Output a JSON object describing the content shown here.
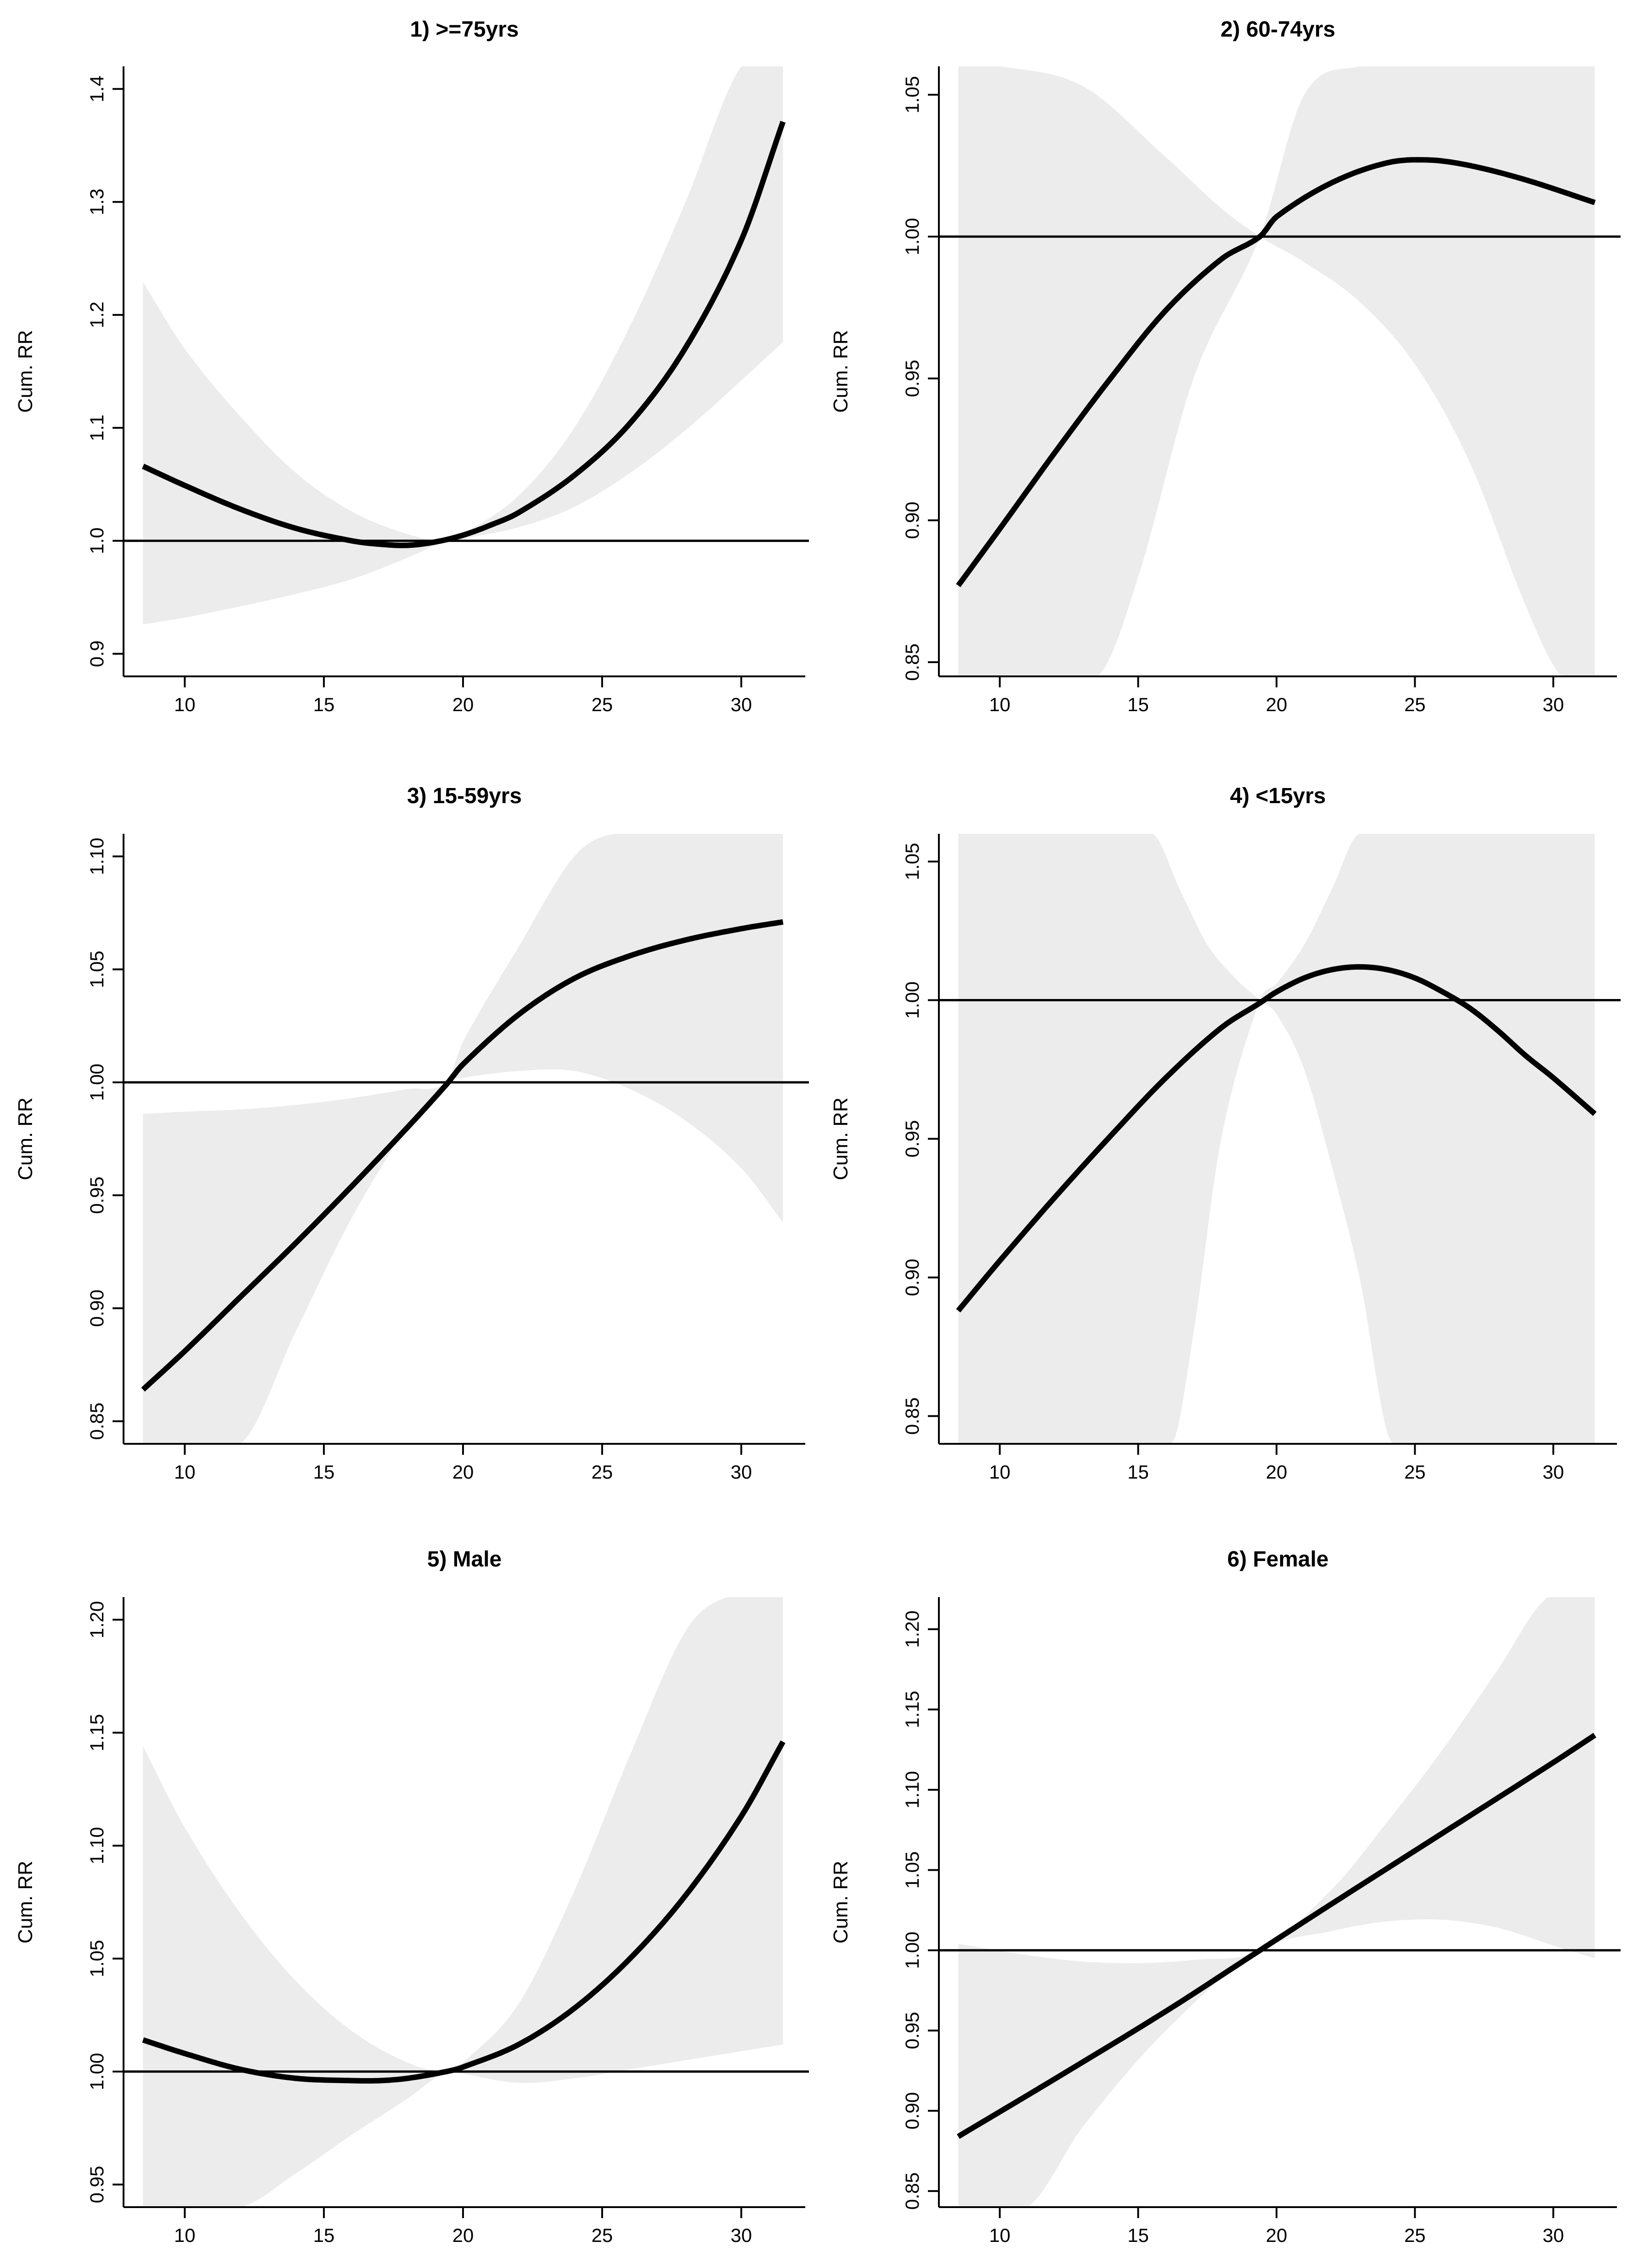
{
  "figure": {
    "band_color": "#ececec",
    "line_color": "#000000"
  },
  "chart_data": [
    {
      "type": "line",
      "title": "1) >=75yrs",
      "xlabel": "",
      "ylabel": "Cum. RR",
      "xlim": [
        7.8,
        32.3
      ],
      "ylim": [
        0.88,
        1.42
      ],
      "xticks": [
        10,
        15,
        20,
        25,
        30
      ],
      "xtick_labels": [
        "10",
        "15",
        "20",
        "25",
        "30"
      ],
      "yticks": [
        0.9,
        1.0,
        1.1,
        1.2,
        1.3,
        1.4
      ],
      "ytick_labels": [
        "0.9",
        "1.0",
        "1.1",
        "1.2",
        "1.3",
        "1.4"
      ],
      "reference_line": 1.0,
      "series": [
        {
          "name": "Cum. RR",
          "x": [
            8.5,
            10,
            12,
            14,
            16,
            17,
            18,
            19,
            20,
            21,
            22,
            24,
            26,
            28,
            30,
            31.5
          ],
          "values": [
            1.066,
            1.049,
            1.028,
            1.011,
            1.0,
            0.997,
            0.996,
            0.999,
            1.005,
            1.014,
            1.025,
            1.058,
            1.104,
            1.171,
            1.266,
            1.371
          ]
        },
        {
          "name": "95% CI lower",
          "x": [
            8.5,
            10,
            12,
            14,
            16,
            18,
            19.4,
            20,
            22,
            24,
            26,
            28,
            30,
            31.5
          ],
          "values": [
            0.926,
            0.932,
            0.942,
            0.953,
            0.966,
            0.985,
            1.0,
            1.002,
            1.012,
            1.03,
            1.06,
            1.098,
            1.142,
            1.176
          ]
        },
        {
          "name": "95% CI upper",
          "x": [
            8.5,
            10,
            12,
            14,
            16,
            18,
            19.4,
            20,
            22,
            24,
            26,
            28,
            30,
            31.5
          ],
          "values": [
            1.229,
            1.17,
            1.11,
            1.06,
            1.026,
            1.006,
            1.0,
            1.006,
            1.04,
            1.1,
            1.19,
            1.3,
            1.42,
            1.42
          ]
        }
      ]
    },
    {
      "type": "line",
      "title": "2) 60-74yrs",
      "xlabel": "",
      "ylabel": "Cum. RR",
      "xlim": [
        7.8,
        32.3
      ],
      "ylim": [
        0.845,
        1.06
      ],
      "xticks": [
        10,
        15,
        20,
        25,
        30
      ],
      "xtick_labels": [
        "10",
        "15",
        "20",
        "25",
        "30"
      ],
      "yticks": [
        0.85,
        0.9,
        0.95,
        1.0,
        1.05
      ],
      "ytick_labels": [
        "0.85",
        "0.90",
        "0.95",
        "1.00",
        "1.05"
      ],
      "reference_line": 1.0,
      "series": [
        {
          "name": "Cum. RR",
          "x": [
            8.5,
            10,
            12,
            14,
            16,
            18,
            19.4,
            20,
            22,
            24,
            25.5,
            27,
            29,
            31.5
          ],
          "values": [
            0.877,
            0.897,
            0.924,
            0.95,
            0.974,
            0.992,
            1.0,
            1.007,
            1.019,
            1.026,
            1.027,
            1.025,
            1.02,
            1.012
          ]
        },
        {
          "name": "95% CI lower",
          "x": [
            8.5,
            13.5,
            15,
            17,
            19.4,
            21,
            23,
            25,
            27,
            29,
            30.3,
            31.5
          ],
          "values": [
            0.845,
            0.845,
            0.88,
            0.95,
            1.0,
            1.05,
            1.06,
            1.06,
            1.06,
            1.06,
            1.06,
            1.06
          ]
        },
        {
          "name": "95% CI upper",
          "x": [
            8.5,
            10,
            13,
            16,
            18,
            19.4,
            21,
            23,
            25,
            27,
            29,
            30.3,
            31.5
          ],
          "values": [
            1.06,
            1.06,
            1.053,
            1.028,
            1.01,
            1.0,
            0.991,
            0.977,
            0.955,
            0.92,
            0.87,
            0.845,
            0.845
          ]
        }
      ]
    },
    {
      "type": "line",
      "title": "3) 15-59yrs",
      "xlabel": "",
      "ylabel": "Cum. RR",
      "xlim": [
        7.8,
        32.3
      ],
      "ylim": [
        0.84,
        1.11
      ],
      "xticks": [
        10,
        15,
        20,
        25,
        30
      ],
      "xtick_labels": [
        "10",
        "15",
        "20",
        "25",
        "30"
      ],
      "yticks": [
        0.85,
        0.9,
        0.95,
        1.0,
        1.05,
        1.1
      ],
      "ytick_labels": [
        "0.85",
        "0.90",
        "0.95",
        "1.00",
        "1.05",
        "1.10"
      ],
      "reference_line": 1.0,
      "series": [
        {
          "name": "Cum. RR",
          "x": [
            8.5,
            10,
            12,
            14,
            16,
            18,
            19.4,
            20,
            22,
            24,
            26,
            28,
            30,
            31.5
          ],
          "values": [
            0.864,
            0.881,
            0.905,
            0.929,
            0.954,
            0.98,
            0.999,
            1.008,
            1.03,
            1.046,
            1.056,
            1.063,
            1.068,
            1.071
          ]
        },
        {
          "name": "95% CI lower",
          "x": [
            8.5,
            12,
            14,
            16,
            18,
            19.4,
            20,
            22,
            24,
            26,
            28,
            30,
            31.5
          ],
          "values": [
            0.84,
            0.84,
            0.89,
            0.94,
            0.98,
            1.0,
            1.002,
            1.005,
            1.005,
            0.997,
            0.983,
            0.962,
            0.938
          ]
        },
        {
          "name": "95% CI upper",
          "x": [
            8.5,
            10,
            12,
            14,
            16,
            18,
            19.4,
            20,
            22,
            24,
            25.5,
            31.5
          ],
          "values": [
            0.986,
            0.987,
            0.988,
            0.99,
            0.993,
            0.997,
            1.0,
            1.018,
            1.06,
            1.1,
            1.11,
            1.11
          ]
        }
      ]
    },
    {
      "type": "line",
      "title": "4) <15yrs",
      "xlabel": "",
      "ylabel": "Cum. RR",
      "xlim": [
        7.8,
        32.3
      ],
      "ylim": [
        0.84,
        1.06
      ],
      "xticks": [
        10,
        15,
        20,
        25,
        30
      ],
      "xtick_labels": [
        "10",
        "15",
        "20",
        "25",
        "30"
      ],
      "yticks": [
        0.85,
        0.9,
        0.95,
        1.0,
        1.05
      ],
      "ytick_labels": [
        "0.85",
        "0.90",
        "0.95",
        "1.00",
        "1.05"
      ],
      "reference_line": 1.0,
      "series": [
        {
          "name": "Cum. RR",
          "x": [
            8.5,
            10,
            12,
            14,
            16,
            18,
            19.4,
            20,
            21,
            22,
            23,
            24,
            25,
            26,
            27,
            28,
            29,
            30,
            31.5
          ],
          "values": [
            0.888,
            0.906,
            0.929,
            0.951,
            0.972,
            0.99,
            0.999,
            1.003,
            1.008,
            1.011,
            1.012,
            1.011,
            1.008,
            1.003,
            0.997,
            0.989,
            0.98,
            0.972,
            0.959
          ]
        },
        {
          "name": "95% CI lower",
          "x": [
            8.5,
            16.2,
            17,
            18,
            19.4,
            20,
            21,
            22,
            23,
            31.5
          ],
          "values": [
            0.84,
            0.84,
            0.88,
            0.95,
            1.0,
            1.006,
            1.02,
            1.04,
            1.06,
            1.06
          ]
        },
        {
          "name": "95% CI upper",
          "x": [
            8.5,
            15.5,
            16.5,
            17.5,
            18.5,
            19.4,
            20,
            21,
            22,
            23,
            24.2,
            31.5
          ],
          "values": [
            1.06,
            1.06,
            1.04,
            1.02,
            1.008,
            1.0,
            0.995,
            0.975,
            0.94,
            0.9,
            0.84,
            0.84
          ]
        }
      ]
    },
    {
      "type": "line",
      "title": "5) Male",
      "xlabel": "",
      "ylabel": "Cum. RR",
      "xlim": [
        7.8,
        32.3
      ],
      "ylim": [
        0.94,
        1.21
      ],
      "xticks": [
        10,
        15,
        20,
        25,
        30
      ],
      "xtick_labels": [
        "10",
        "15",
        "20",
        "25",
        "30"
      ],
      "yticks": [
        0.95,
        1.0,
        1.05,
        1.1,
        1.15,
        1.2
      ],
      "ytick_labels": [
        "0.95",
        "1.00",
        "1.05",
        "1.10",
        "1.15",
        "1.20"
      ],
      "reference_line": 1.0,
      "series": [
        {
          "name": "Cum. RR",
          "x": [
            8.5,
            10,
            12,
            14,
            16,
            17,
            18,
            19.4,
            20,
            22,
            24,
            26,
            28,
            30,
            31.5
          ],
          "values": [
            1.014,
            1.008,
            1.001,
            0.997,
            0.996,
            0.996,
            0.997,
            1.0,
            1.002,
            1.012,
            1.028,
            1.05,
            1.078,
            1.113,
            1.146
          ]
        },
        {
          "name": "95% CI lower",
          "x": [
            8.5,
            12,
            14,
            16,
            18,
            19.4,
            20,
            22,
            24,
            26,
            28,
            30,
            31.5
          ],
          "values": [
            0.94,
            0.94,
            0.955,
            0.972,
            0.988,
            1.0,
            0.999,
            0.995,
            0.997,
            1.001,
            1.005,
            1.009,
            1.012
          ]
        },
        {
          "name": "95% CI upper",
          "x": [
            8.5,
            10,
            12,
            14,
            16,
            18,
            19.4,
            20,
            22,
            24,
            26,
            28,
            29.5,
            31.5
          ],
          "values": [
            1.144,
            1.108,
            1.07,
            1.04,
            1.018,
            1.004,
            1.0,
            1.004,
            1.03,
            1.08,
            1.14,
            1.195,
            1.21,
            1.21
          ]
        }
      ]
    },
    {
      "type": "line",
      "title": "6) Female",
      "xlabel": "",
      "ylabel": "Cum. RR",
      "xlim": [
        7.8,
        32.3
      ],
      "ylim": [
        0.84,
        1.22
      ],
      "xticks": [
        10,
        15,
        20,
        25,
        30
      ],
      "xtick_labels": [
        "10",
        "15",
        "20",
        "25",
        "30"
      ],
      "yticks": [
        0.85,
        0.9,
        0.95,
        1.0,
        1.05,
        1.1,
        1.15,
        1.2
      ],
      "ytick_labels": [
        "0.85",
        "0.90",
        "0.95",
        "1.00",
        "1.05",
        "1.10",
        "1.15",
        "1.20"
      ],
      "reference_line": 1.0,
      "series": [
        {
          "name": "Cum. RR",
          "x": [
            8.5,
            12,
            16,
            19.4,
            22,
            26,
            30,
            31.5
          ],
          "values": [
            0.884,
            0.92,
            0.962,
            1.0,
            1.029,
            1.073,
            1.117,
            1.134
          ]
        },
        {
          "name": "95% CI lower",
          "x": [
            8.5,
            11,
            13,
            16,
            19.4,
            22,
            24,
            26,
            28,
            30,
            31.5
          ],
          "values": [
            0.84,
            0.84,
            0.89,
            0.95,
            1.0,
            1.012,
            1.018,
            1.019,
            1.014,
            1.003,
            0.995
          ]
        },
        {
          "name": "95% CI upper",
          "x": [
            8.5,
            11,
            13,
            15,
            17,
            19.4,
            22,
            24,
            26,
            28,
            29.8,
            31.5
          ],
          "values": [
            1.004,
            0.997,
            0.993,
            0.992,
            0.994,
            1.0,
            1.038,
            1.08,
            1.125,
            1.175,
            1.22,
            1.22
          ]
        }
      ]
    }
  ]
}
